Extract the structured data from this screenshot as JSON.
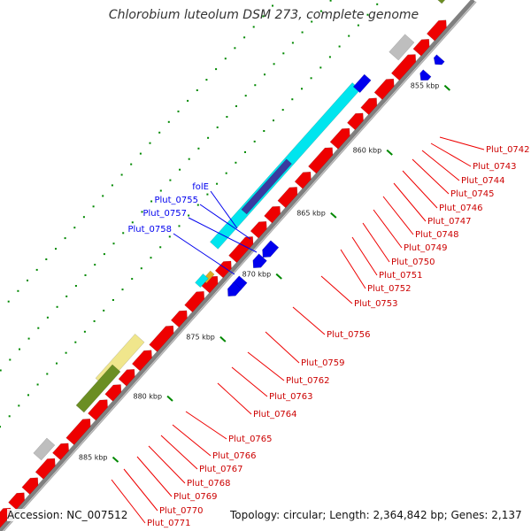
{
  "title": "Chlorobium luteolum DSM 273, complete genome",
  "footer": {
    "accession": "Accession: NC_007512",
    "summary": "Topology: circular; Length: 2,364,842 bp; Genes: 2,137"
  },
  "colors": {
    "forward": "#0000ee",
    "reverse": "#ee0000",
    "cyan": "#00e5ee",
    "olive": "#6b8e23",
    "khaki": "#f0e68c",
    "gray": "#bebebe",
    "navy": "#3a3aa0",
    "tick": "#008800",
    "backbone": "#808080"
  },
  "kbp_ticks": [
    {
      "label": "855 kbp"
    },
    {
      "label": "860 kbp"
    },
    {
      "label": "865 kbp"
    },
    {
      "label": "870 kbp"
    },
    {
      "label": "875 kbp"
    },
    {
      "label": "880 kbp"
    },
    {
      "label": "885 kbp"
    }
  ],
  "forward_labels": [
    {
      "text": "folE"
    },
    {
      "text": "Plut_0755"
    },
    {
      "text": "Plut_0757"
    },
    {
      "text": "Plut_0758"
    }
  ],
  "reverse_labels": [
    {
      "text": "Plut_0742"
    },
    {
      "text": "Plut_0743"
    },
    {
      "text": "Plut_0744"
    },
    {
      "text": "Plut_0745"
    },
    {
      "text": "Plut_0746"
    },
    {
      "text": "Plut_0747"
    },
    {
      "text": "Plut_0748"
    },
    {
      "text": "Plut_0749"
    },
    {
      "text": "Plut_0750"
    },
    {
      "text": "Plut_0751"
    },
    {
      "text": "Plut_0752"
    },
    {
      "text": "Plut_0753"
    },
    {
      "text": "Plut_0756"
    },
    {
      "text": "Plut_0759"
    },
    {
      "text": "Plut_0762"
    },
    {
      "text": "Plut_0763"
    },
    {
      "text": "Plut_0764"
    },
    {
      "text": "Plut_0765"
    },
    {
      "text": "Plut_0766"
    },
    {
      "text": "Plut_0767"
    },
    {
      "text": "Plut_0768"
    },
    {
      "text": "Plut_0769"
    },
    {
      "text": "Plut_0770"
    },
    {
      "text": "Plut_0771"
    }
  ]
}
